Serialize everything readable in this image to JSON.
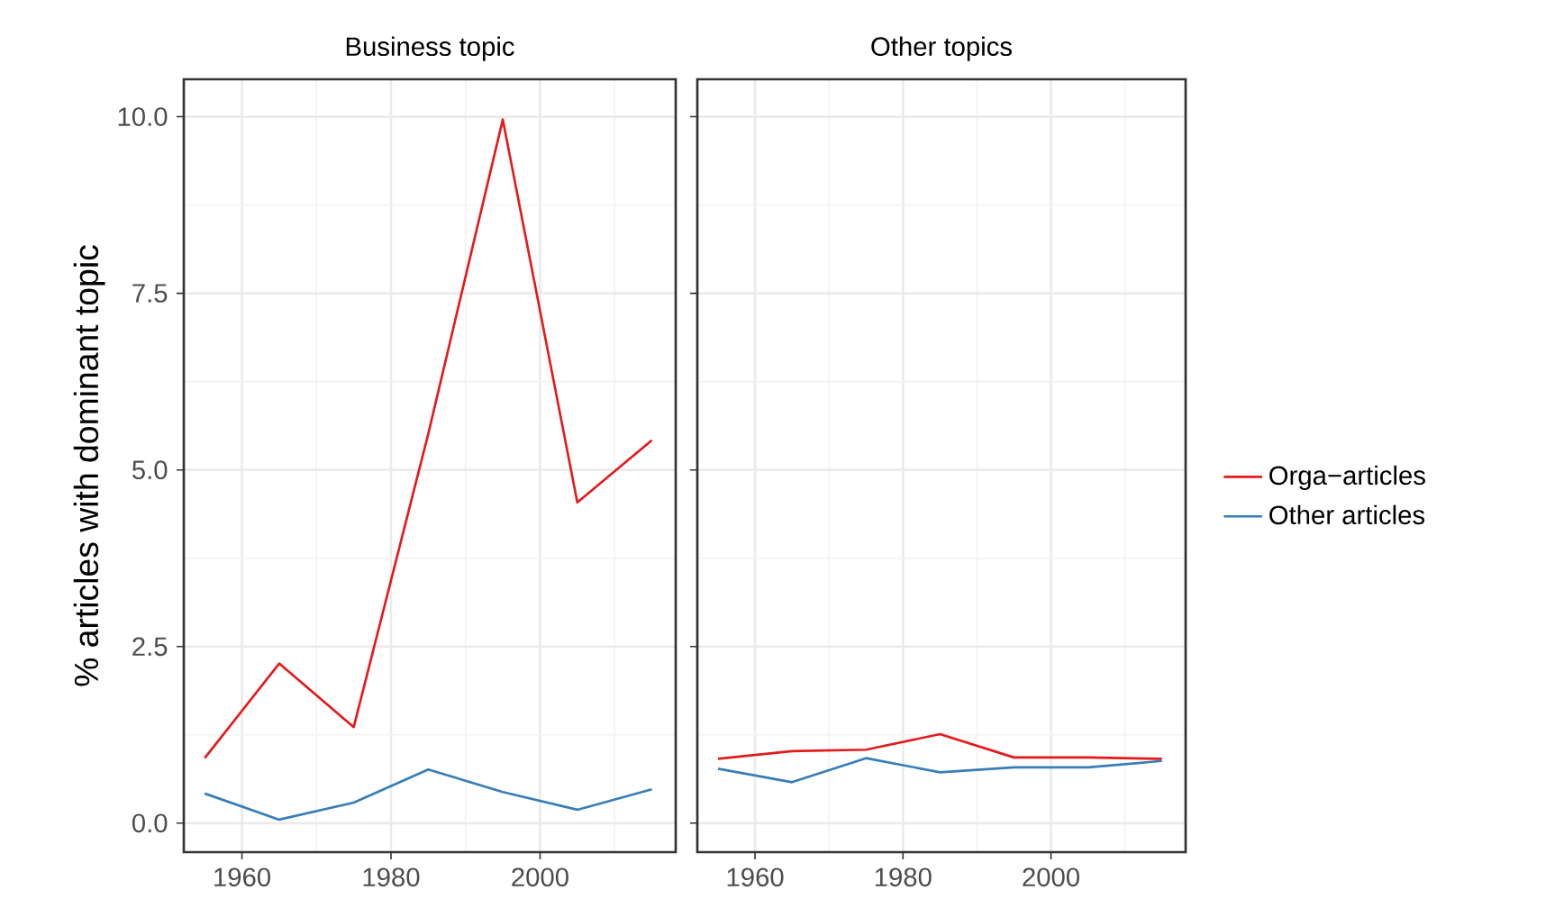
{
  "chart_data": [
    {
      "type": "line",
      "title": "Business topic",
      "ylabel": "% articles with dominant topic",
      "x": [
        1955,
        1965,
        1975,
        1985,
        1995,
        2005,
        2015
      ],
      "series": [
        {
          "color": "#e41a1c",
          "values": [
            0.92,
            2.26,
            1.36,
            5.51,
            9.96,
            4.54,
            5.42
          ]
        },
        {
          "color": "#377eb8",
          "values": [
            0.42,
            0.05,
            0.29,
            0.76,
            0.44,
            0.19,
            0.48
          ]
        }
      ],
      "xlim": [
        1952.2,
        2018.2
      ],
      "ylim": [
        -0.41,
        10.53
      ],
      "xticks": [
        1960,
        1980,
        2000
      ],
      "yticks": [
        {
          "value": 0,
          "label": "0.0"
        },
        {
          "value": 2.5,
          "label": "2.5"
        },
        {
          "value": 5,
          "label": "5.0"
        },
        {
          "value": 7.5,
          "label": "7.5"
        },
        {
          "value": 10,
          "label": "10.0"
        }
      ],
      "grid": true,
      "line_style": "solid",
      "marker": "none"
    },
    {
      "type": "line",
      "title": "Other topics",
      "x": [
        1955,
        1965,
        1975,
        1985,
        1995,
        2005,
        2015
      ],
      "series": [
        {
          "name": "Orga−articles",
          "color": "#e41a1c",
          "values": [
            0.91,
            1.02,
            1.04,
            1.26,
            0.93,
            0.93,
            0.91
          ]
        },
        {
          "name": "Other articles",
          "color": "#377eb8",
          "values": [
            0.77,
            0.58,
            0.92,
            0.72,
            0.79,
            0.79,
            0.88
          ]
        }
      ],
      "xlim": [
        1952.2,
        2018.2
      ],
      "ylim": [
        -0.41,
        10.53
      ],
      "xticks": [
        1960,
        1980,
        2000
      ],
      "yticks": [
        0,
        2.5,
        5,
        7.5,
        10
      ],
      "grid": true,
      "tick_labels": "x",
      "legend": "right",
      "line_style": "solid",
      "marker": "none"
    }
  ]
}
